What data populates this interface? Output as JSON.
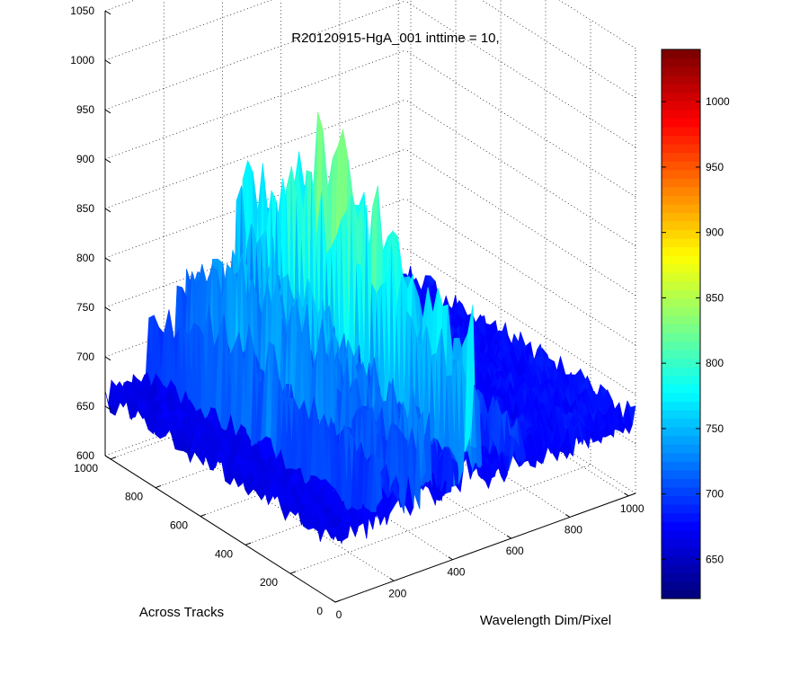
{
  "chart_data": {
    "type": "surface3d",
    "title": "R20120915-HgA_001 inttime = 10,",
    "xlabel": "Wavelength Dim/Pixel",
    "ylabel": "Across Tracks",
    "zlabel": "",
    "x_ticks": [
      "0",
      "200",
      "400",
      "600",
      "800",
      "1000"
    ],
    "y_ticks": [
      "0",
      "200",
      "400",
      "600",
      "800",
      "1000"
    ],
    "z_ticks": [
      "600",
      "650",
      "700",
      "750",
      "800",
      "850",
      "900",
      "950",
      "1000",
      "1050"
    ],
    "colorbar_ticks": [
      "650",
      "700",
      "750",
      "800",
      "850",
      "900",
      "950",
      "1000"
    ],
    "xlim": [
      0,
      1024
    ],
    "ylim": [
      0,
      1024
    ],
    "zlim": [
      600,
      1050
    ],
    "clim": [
      620,
      1040
    ],
    "colormap": "jet",
    "grid": true,
    "baseline_level": 665,
    "emission_lines": [
      {
        "x": 150,
        "peak": 755
      },
      {
        "x": 220,
        "peak": 740
      },
      {
        "x": 245,
        "peak": 795
      },
      {
        "x": 275,
        "peak": 780
      },
      {
        "x": 300,
        "peak": 810
      },
      {
        "x": 320,
        "peak": 785
      },
      {
        "x": 410,
        "peak": 775
      },
      {
        "x": 450,
        "peak": 880
      },
      {
        "x": 470,
        "peak": 905
      },
      {
        "x": 490,
        "peak": 860
      },
      {
        "x": 620,
        "peak": 740
      },
      {
        "x": 640,
        "peak": 725
      }
    ]
  }
}
